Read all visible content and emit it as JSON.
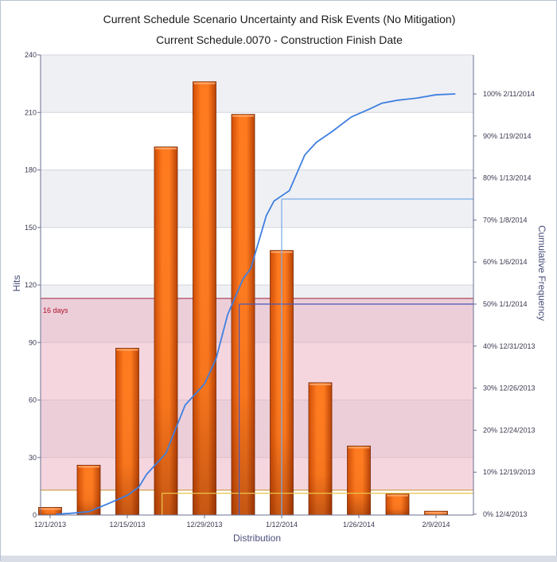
{
  "chart_data": {
    "type": "bar",
    "title": "Current Schedule Scenario Uncertainty and Risk Events (No Mitigation)",
    "subtitle": "Current Schedule.0070 - Construction Finish Date",
    "xlabel": "Distribution",
    "ylabel": "Hits",
    "y2label": "Cumulative Frequency",
    "ylim": [
      0,
      240
    ],
    "yticks": [
      0,
      30,
      60,
      90,
      120,
      150,
      180,
      210,
      240
    ],
    "xlim": [
      0,
      11
    ],
    "xticks": [
      {
        "x": 0.0,
        "label": "12/1/2013"
      },
      {
        "x": 2.0,
        "label": "12/15/2013"
      },
      {
        "x": 4.0,
        "label": "12/29/2013"
      },
      {
        "x": 6.0,
        "label": "1/12/2014"
      },
      {
        "x": 8.0,
        "label": "1/26/2014"
      },
      {
        "x": 10.0,
        "label": "2/9/2014"
      }
    ],
    "bars": [
      {
        "x": 0.0,
        "value": 4
      },
      {
        "x": 1.0,
        "value": 26
      },
      {
        "x": 2.0,
        "value": 87
      },
      {
        "x": 3.0,
        "value": 192
      },
      {
        "x": 4.0,
        "value": 226
      },
      {
        "x": 5.0,
        "value": 209
      },
      {
        "x": 6.0,
        "value": 138
      },
      {
        "x": 7.0,
        "value": 69
      },
      {
        "x": 8.0,
        "value": 36
      },
      {
        "x": 9.0,
        "value": 11
      },
      {
        "x": 10.0,
        "value": 2
      }
    ],
    "y2ticks": [
      "0% 12/4/2013",
      "10% 12/19/2013",
      "20% 12/24/2013",
      "30% 12/26/2013",
      "40% 12/31/2013",
      "50% 1/1/2014",
      "60% 1/6/2014",
      "70% 1/8/2014",
      "80% 1/13/2014",
      "90% 1/19/2014",
      "100% 2/11/2014"
    ],
    "cumulative": {
      "color": "#3d7fe0",
      "points": [
        [
          0.15,
          0
        ],
        [
          0.5,
          0.2
        ],
        [
          1.0,
          0.6
        ],
        [
          1.5,
          2.5
        ],
        [
          2.0,
          4.5
        ],
        [
          2.3,
          6.5
        ],
        [
          2.5,
          9.5
        ],
        [
          3.0,
          14.5
        ],
        [
          3.5,
          26
        ],
        [
          4.0,
          31
        ],
        [
          4.3,
          37
        ],
        [
          4.6,
          47.5
        ],
        [
          5.0,
          56
        ],
        [
          5.2,
          58.5
        ],
        [
          5.6,
          71
        ],
        [
          5.8,
          74.5
        ],
        [
          6.2,
          77
        ],
        [
          6.6,
          85.5
        ],
        [
          6.9,
          88.5
        ],
        [
          7.3,
          91
        ],
        [
          7.8,
          94.5
        ],
        [
          8.3,
          96.5
        ],
        [
          8.6,
          97.8
        ],
        [
          9.0,
          98.5
        ],
        [
          9.5,
          99
        ],
        [
          10.0,
          99.8
        ],
        [
          10.5,
          100
        ]
      ]
    },
    "band": {
      "label": "16 days",
      "from": 13,
      "to": 113,
      "color": "#e8a3b8"
    },
    "markers": [
      {
        "x": 2.9,
        "frequency": 5,
        "color": "#e8c44a"
      },
      {
        "x": 4.9,
        "frequency": 50,
        "color": "#4a57b8"
      },
      {
        "x": 6.0,
        "frequency": 75,
        "color": "#7aaae6"
      }
    ],
    "bar_color": "#f26b0f",
    "grid": true
  }
}
